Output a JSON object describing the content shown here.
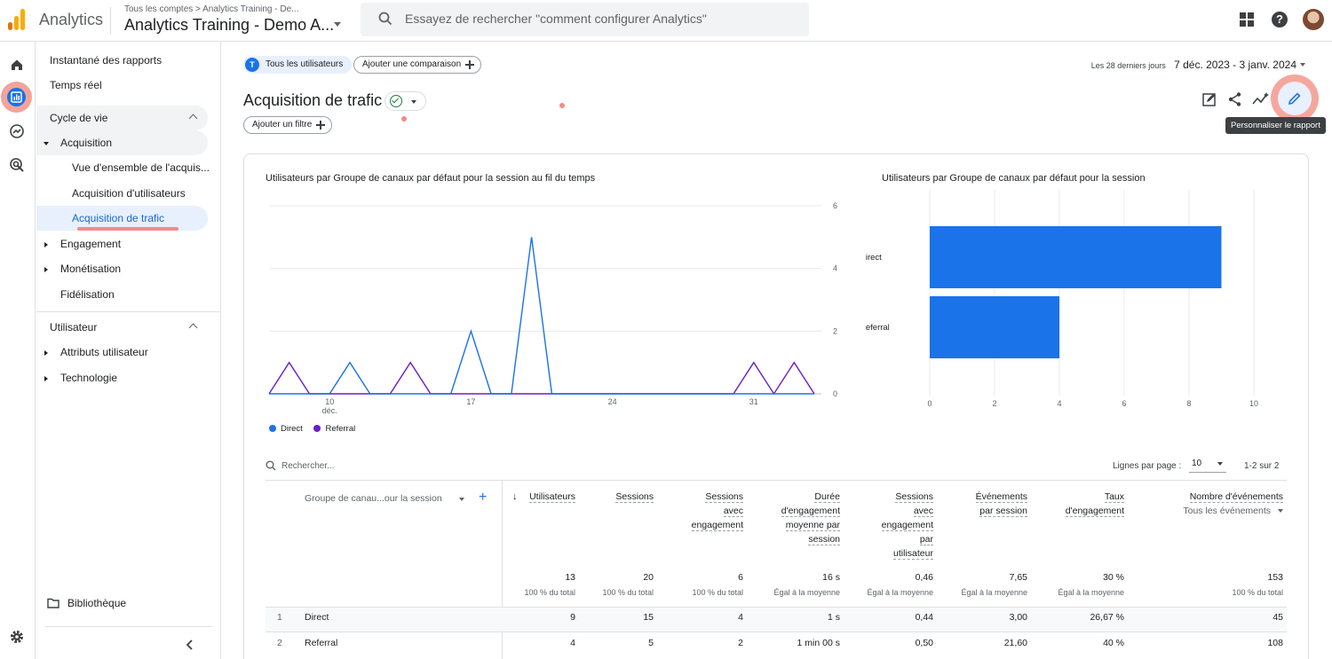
{
  "topbar": {
    "app_name": "Analytics",
    "breadcrumb": "Tous les comptes > Analytics Training - De...",
    "property_name": "Analytics Training - Demo A...",
    "search_placeholder": "Essayez de rechercher \"comment configurer Analytics\"",
    "help_glyph": "?"
  },
  "brand_colors": {
    "logo": [
      "#f9ab00",
      "#e37400",
      "#e37400"
    ],
    "primary": "#1a73e8",
    "referral": "#6a1fc9"
  },
  "sidebar": {
    "snapshot": "Instantané des rapports",
    "realtime": "Temps réel",
    "lifecycle": "Cycle de vie",
    "acquisition": "Acquisition",
    "acq_overview": "Vue d'ensemble de l'acquis...",
    "user_acquisition": "Acquisition d'utilisateurs",
    "traffic_acquisition": "Acquisition de trafic",
    "engagement": "Engagement",
    "monetization": "Monétisation",
    "retention": "Fidélisation",
    "user": "Utilisateur",
    "user_attributes": "Attributs utilisateur",
    "technology": "Technologie",
    "library": "Bibliothèque"
  },
  "header": {
    "segment_initial": "T",
    "segment": "Tous les utilisateurs",
    "add_comparison": "Ajouter une comparaison",
    "date_prefix": "Les 28 derniers jours",
    "date_range": "7 déc. 2023 - 3 janv. 2024",
    "title": "Acquisition de trafic",
    "add_filter": "Ajouter un filtre",
    "tooltip": "Personnaliser le rapport"
  },
  "line_chart_title": "Utilisateurs par Groupe de canaux par défaut pour la session au fil du temps",
  "bar_chart_title": "Utilisateurs par Groupe de canaux par défaut pour la session",
  "chart_data": [
    {
      "type": "line",
      "title": "Utilisateurs par Groupe de canaux par défaut pour la session au fil du temps",
      "x": [
        "7 déc.",
        "8 déc.",
        "9 déc.",
        "10 déc.",
        "11 déc.",
        "12 déc.",
        "13 déc.",
        "14 déc.",
        "15 déc.",
        "16 déc.",
        "17 déc.",
        "18 déc.",
        "19 déc.",
        "20 déc.",
        "21 déc.",
        "22 déc.",
        "23 déc.",
        "24 déc.",
        "25 déc.",
        "26 déc.",
        "27 déc.",
        "28 déc.",
        "29 déc.",
        "30 déc.",
        "31 déc.",
        "1 janv.",
        "2 janv.",
        "3 janv."
      ],
      "x_tick_labels": [
        {
          "index": 3,
          "label": "10",
          "sub": "déc."
        },
        {
          "index": 10,
          "label": "17",
          "sub": ""
        },
        {
          "index": 17,
          "label": "24",
          "sub": ""
        },
        {
          "index": 24,
          "label": "31",
          "sub": ""
        }
      ],
      "series": [
        {
          "name": "Direct",
          "color": "#1a73e8",
          "values": [
            0,
            0,
            0,
            0,
            1,
            0,
            0,
            0,
            0,
            0,
            2,
            0,
            0,
            5,
            0,
            0,
            0,
            0,
            0,
            0,
            0,
            0,
            0,
            0,
            0,
            0,
            0,
            0
          ]
        },
        {
          "name": "Referral",
          "color": "#6a1fc9",
          "values": [
            0,
            1,
            0,
            0,
            0,
            0,
            0,
            1,
            0,
            0,
            0,
            0,
            0,
            0,
            0,
            0,
            0,
            0,
            0,
            0,
            0,
            0,
            0,
            0,
            1,
            0,
            1,
            0
          ]
        }
      ],
      "y_ticks": [
        "0",
        "2",
        "4",
        "6"
      ],
      "ylim": [
        0,
        6
      ],
      "legend": [
        "Direct",
        "Referral"
      ],
      "legend_position": "bottom-left"
    },
    {
      "type": "bar",
      "orientation": "horizontal",
      "title": "Utilisateurs par Groupe de canaux par défaut pour la session",
      "categories": [
        "Direct",
        "Referral"
      ],
      "values": [
        9,
        4
      ],
      "color": "#1a73e8",
      "x_ticks": [
        "0",
        "2",
        "4",
        "6",
        "8",
        "10"
      ],
      "xlim": [
        0,
        10
      ]
    }
  ],
  "table": {
    "search_placeholder": "Rechercher...",
    "rows_per_page_label": "Lignes par page :",
    "rows_per_page": "10",
    "pagination": "1-2 sur 2",
    "dimension_header": "Groupe de canau...our la session",
    "sort_arrow": "↓",
    "metrics": [
      {
        "lines": [
          "Utilisateurs"
        ],
        "total": "13",
        "total_sub": "100 % du total"
      },
      {
        "lines": [
          "Sessions"
        ],
        "total": "20",
        "total_sub": "100 % du total"
      },
      {
        "lines": [
          "Sessions",
          "avec",
          "engagement"
        ],
        "total": "6",
        "total_sub": "100 % du total"
      },
      {
        "lines": [
          "Durée",
          "d'engagement",
          "moyenne par",
          "session"
        ],
        "total": "16 s",
        "total_sub": "Égal à la moyenne"
      },
      {
        "lines": [
          "Sessions",
          "avec",
          "engagement",
          "par",
          "utilisateur"
        ],
        "total": "0,46",
        "total_sub": "Égal à la moyenne"
      },
      {
        "lines": [
          "Événements",
          "par session"
        ],
        "total": "7,65",
        "total_sub": "Égal à la moyenne"
      },
      {
        "lines": [
          "Taux",
          "d'engagement"
        ],
        "total": "30 %",
        "total_sub": "Égal à la moyenne"
      },
      {
        "lines": [
          "Nombre d'événements"
        ],
        "sub": "Tous les événements",
        "total": "153",
        "total_sub": "100 % du total"
      }
    ],
    "rows": [
      {
        "idx": "1",
        "name": "Direct",
        "values": [
          "9",
          "15",
          "4",
          "1 s",
          "0,44",
          "3,00",
          "26,67 %",
          "45"
        ]
      },
      {
        "idx": "2",
        "name": "Referral",
        "values": [
          "4",
          "5",
          "2",
          "1 min 00 s",
          "0,50",
          "21,60",
          "40 %",
          "108"
        ]
      }
    ]
  }
}
